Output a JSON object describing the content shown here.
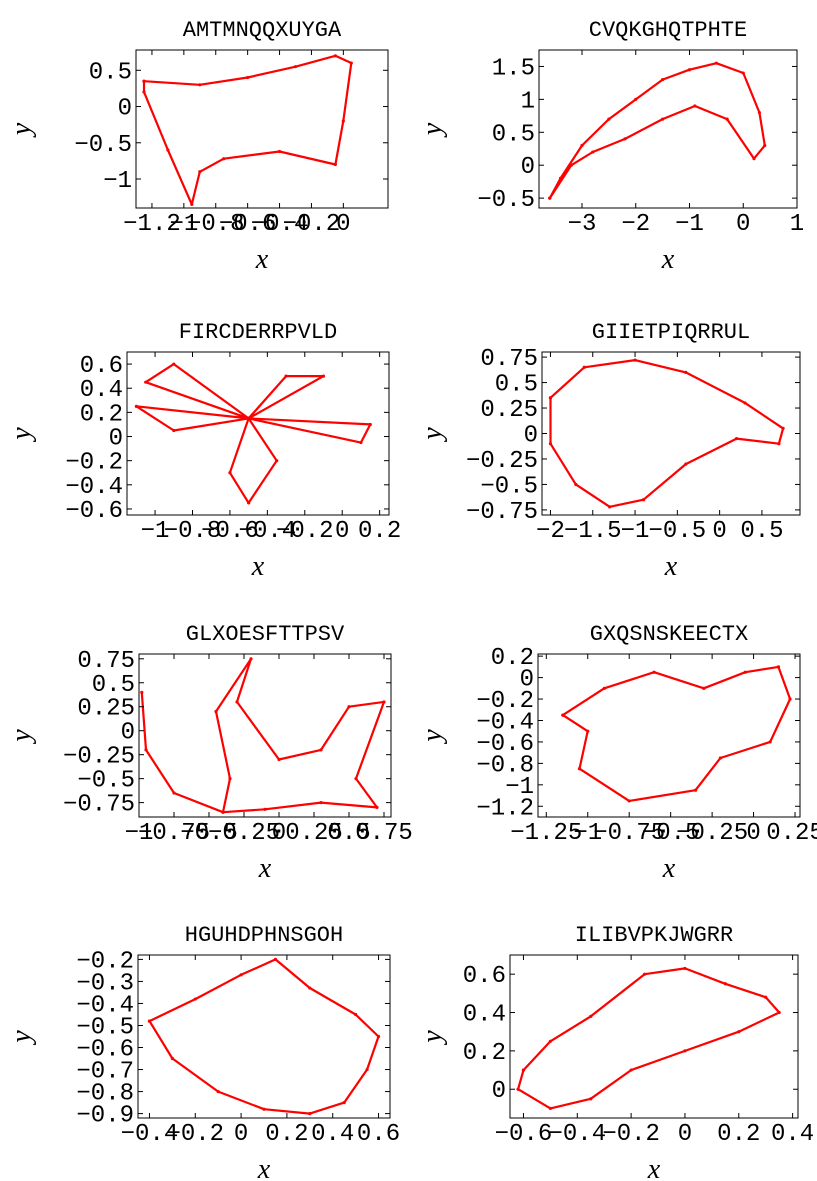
{
  "colors": {
    "points": "#ff0000",
    "frame": "#000000",
    "background": "#ffffff"
  },
  "chart_data": [
    {
      "type": "scatter",
      "title": "AMTMNQQXUYGA",
      "xlabel": "x",
      "ylabel": "y",
      "xlim": [
        -1.3,
        0.28
      ],
      "ylim": [
        -1.4,
        0.78
      ],
      "xticks": [
        -1.2,
        -1,
        -0.8,
        -0.6,
        -0.4,
        -0.2,
        0
      ],
      "xtick_labels": [
        "−1.2",
        "−1",
        "−0.8",
        "−0.6",
        "−0.4",
        "−0.2",
        "0"
      ],
      "yticks": [
        0.5,
        0,
        -0.5,
        -1
      ],
      "ytick_labels": [
        "0.5",
        "0",
        "−0.5",
        "−1"
      ],
      "series": [
        {
          "points": [
            [
              -1.25,
              0.35
            ],
            [
              -0.9,
              0.3
            ],
            [
              -0.6,
              0.4
            ],
            [
              -0.3,
              0.55
            ],
            [
              -0.05,
              0.7
            ],
            [
              0.05,
              0.6
            ],
            [
              0.0,
              -0.2
            ],
            [
              -0.05,
              -0.8
            ],
            [
              -0.4,
              -0.62
            ],
            [
              -0.75,
              -0.72
            ],
            [
              -0.9,
              -0.9
            ],
            [
              -0.95,
              -1.35
            ],
            [
              -1.1,
              -0.6
            ],
            [
              -1.25,
              0.2
            ],
            [
              -1.25,
              0.35
            ]
          ]
        }
      ]
    },
    {
      "type": "scatter",
      "title": "CVQKGHQTPHTE",
      "xlabel": "x",
      "ylabel": "y",
      "xlim": [
        -3.8,
        1.0
      ],
      "ylim": [
        -0.65,
        1.75
      ],
      "xticks": [
        -3,
        -2,
        -1,
        0,
        1
      ],
      "xtick_labels": [
        "−3",
        "−2",
        "−1",
        "0",
        "1"
      ],
      "yticks": [
        1.5,
        1,
        0.5,
        0,
        -0.5
      ],
      "ytick_labels": [
        "1.5",
        "1",
        "0.5",
        "0",
        "−0.5"
      ],
      "series": [
        {
          "points": [
            [
              -3.6,
              -0.5
            ],
            [
              -3.4,
              -0.2
            ],
            [
              -3.0,
              0.3
            ],
            [
              -2.5,
              0.7
            ],
            [
              -2.0,
              1.0
            ],
            [
              -1.5,
              1.3
            ],
            [
              -1.0,
              1.45
            ],
            [
              -0.5,
              1.55
            ],
            [
              0.0,
              1.4
            ],
            [
              0.3,
              0.8
            ],
            [
              0.4,
              0.3
            ],
            [
              0.2,
              0.1
            ],
            [
              -0.3,
              0.7
            ],
            [
              -0.9,
              0.9
            ],
            [
              -1.5,
              0.7
            ],
            [
              -2.2,
              0.4
            ],
            [
              -2.8,
              0.2
            ],
            [
              -3.2,
              0.0
            ],
            [
              -3.6,
              -0.5
            ]
          ]
        }
      ]
    },
    {
      "type": "scatter",
      "title": "FIRCDERRPVLD",
      "xlabel": "x",
      "ylabel": "y",
      "xlim": [
        -1.15,
        0.25
      ],
      "ylim": [
        -0.65,
        0.7
      ],
      "xticks": [
        -1,
        -0.8,
        -0.6,
        -0.4,
        -0.2,
        0,
        0.2
      ],
      "xtick_labels": [
        "−1",
        "−0.8",
        "−0.6",
        "−0.4",
        "−0.2",
        "0",
        "0.2"
      ],
      "yticks": [
        0.6,
        0.4,
        0.2,
        0,
        -0.2,
        -0.4,
        -0.6
      ],
      "ytick_labels": [
        "0.6",
        "0.4",
        "0.2",
        "0",
        "−0.2",
        "−0.4",
        "−0.6"
      ],
      "series": [
        {
          "points": [
            [
              -0.5,
              0.15
            ],
            [
              -0.9,
              0.6
            ],
            [
              -1.05,
              0.45
            ],
            [
              -0.5,
              0.15
            ],
            [
              -1.1,
              0.25
            ],
            [
              -0.9,
              0.05
            ],
            [
              -0.5,
              0.15
            ],
            [
              -0.6,
              -0.3
            ],
            [
              -0.5,
              -0.55
            ],
            [
              -0.35,
              -0.2
            ],
            [
              -0.5,
              0.15
            ],
            [
              0.1,
              -0.05
            ],
            [
              0.15,
              0.1
            ],
            [
              -0.5,
              0.15
            ],
            [
              -0.3,
              0.5
            ],
            [
              -0.1,
              0.5
            ],
            [
              -0.5,
              0.15
            ]
          ]
        }
      ]
    },
    {
      "type": "scatter",
      "title": "GIIETPIQRRUL",
      "xlabel": "x",
      "ylabel": "y",
      "xlim": [
        -2.1,
        0.95
      ],
      "ylim": [
        -0.8,
        0.8
      ],
      "xticks": [
        -2,
        -1.5,
        -1,
        -0.5,
        0,
        0.5
      ],
      "xtick_labels": [
        "−2",
        "−1.5",
        "−1",
        "−0.5",
        "0",
        "0.5"
      ],
      "yticks": [
        0.75,
        0.5,
        0.25,
        0,
        -0.25,
        -0.5,
        -0.75
      ],
      "ytick_labels": [
        "0.75",
        "0.5",
        "0.25",
        "0",
        "−0.25",
        "−0.5",
        "−0.75"
      ],
      "series": [
        {
          "points": [
            [
              -2.0,
              0.35
            ],
            [
              -1.6,
              0.65
            ],
            [
              -1.0,
              0.72
            ],
            [
              -0.4,
              0.6
            ],
            [
              0.3,
              0.3
            ],
            [
              0.75,
              0.05
            ],
            [
              0.7,
              -0.1
            ],
            [
              0.2,
              -0.05
            ],
            [
              -0.4,
              -0.3
            ],
            [
              -0.9,
              -0.65
            ],
            [
              -1.3,
              -0.72
            ],
            [
              -1.7,
              -0.5
            ],
            [
              -2.0,
              -0.1
            ],
            [
              -2.0,
              0.35
            ]
          ]
        }
      ]
    },
    {
      "type": "scatter",
      "title": "GLXOESFTTPSV",
      "xlabel": "x",
      "ylabel": "y",
      "xlim": [
        -1.0,
        0.8
      ],
      "ylim": [
        -0.9,
        0.8
      ],
      "xticks": [
        -1,
        -0.75,
        -0.5,
        -0.25,
        0,
        0.25,
        0.5,
        0.75
      ],
      "xtick_labels": [
        "−1",
        "−0.75",
        "−0.5",
        "−0.25",
        "0",
        "0.25",
        "0.5",
        "0.75"
      ],
      "yticks": [
        0.75,
        0.5,
        0.25,
        0,
        -0.25,
        -0.5,
        -0.75
      ],
      "ytick_labels": [
        "0.75",
        "0.5",
        "0.25",
        "0",
        "−0.25",
        "−0.5",
        "−0.75"
      ],
      "series": [
        {
          "points": [
            [
              -0.98,
              0.4
            ],
            [
              -0.95,
              -0.2
            ],
            [
              -0.75,
              -0.65
            ],
            [
              -0.4,
              -0.85
            ],
            [
              -0.1,
              -0.82
            ],
            [
              0.3,
              -0.75
            ],
            [
              0.7,
              -0.8
            ],
            [
              0.55,
              -0.5
            ],
            [
              0.75,
              0.3
            ],
            [
              0.5,
              0.25
            ],
            [
              0.3,
              -0.2
            ],
            [
              0.0,
              -0.3
            ],
            [
              -0.3,
              0.3
            ],
            [
              -0.2,
              0.75
            ],
            [
              -0.45,
              0.2
            ],
            [
              -0.35,
              -0.5
            ],
            [
              -0.4,
              -0.85
            ]
          ]
        }
      ]
    },
    {
      "type": "scatter",
      "title": "GXQSNSKEECTX",
      "xlabel": "x",
      "ylabel": "y",
      "xlim": [
        -1.3,
        0.28
      ],
      "ylim": [
        -1.3,
        0.22
      ],
      "xticks": [
        -1.25,
        -1,
        -0.75,
        -0.5,
        -0.25,
        0,
        0.25
      ],
      "xtick_labels": [
        "−1.25",
        "−1",
        "−0.75",
        "−0.5",
        "−0.25",
        "0",
        "0.25"
      ],
      "yticks": [
        0.2,
        0,
        -0.2,
        -0.4,
        -0.6,
        -0.8,
        -1,
        -1.2
      ],
      "ytick_labels": [
        "0.2",
        "0",
        "−0.2",
        "−0.4",
        "−0.6",
        "−0.8",
        "−1",
        "−1.2"
      ],
      "series": [
        {
          "points": [
            [
              -1.15,
              -0.35
            ],
            [
              -0.9,
              -0.1
            ],
            [
              -0.6,
              0.05
            ],
            [
              -0.3,
              -0.1
            ],
            [
              -0.05,
              0.05
            ],
            [
              0.15,
              0.1
            ],
            [
              0.22,
              -0.2
            ],
            [
              0.1,
              -0.6
            ],
            [
              -0.2,
              -0.75
            ],
            [
              -0.35,
              -1.05
            ],
            [
              -0.75,
              -1.15
            ],
            [
              -1.05,
              -0.85
            ],
            [
              -1.0,
              -0.5
            ],
            [
              -1.15,
              -0.35
            ]
          ]
        }
      ]
    },
    {
      "type": "scatter",
      "title": "HGUHDPHNSGOH",
      "xlabel": "x",
      "ylabel": "y",
      "xlim": [
        -0.45,
        0.65
      ],
      "ylim": [
        -0.92,
        -0.18
      ],
      "xticks": [
        -0.4,
        -0.2,
        0,
        0.2,
        0.4,
        0.6
      ],
      "xtick_labels": [
        "−0.4",
        "−0.2",
        "0",
        "0.2",
        "0.4",
        "0.6"
      ],
      "yticks": [
        -0.2,
        -0.3,
        -0.4,
        -0.5,
        -0.6,
        -0.7,
        -0.8,
        -0.9
      ],
      "ytick_labels": [
        "−0.2",
        "−0.3",
        "−0.4",
        "−0.5",
        "−0.6",
        "−0.7",
        "−0.8",
        "−0.9"
      ],
      "series": [
        {
          "points": [
            [
              -0.4,
              -0.48
            ],
            [
              -0.2,
              -0.38
            ],
            [
              0.0,
              -0.27
            ],
            [
              0.15,
              -0.2
            ],
            [
              0.3,
              -0.33
            ],
            [
              0.5,
              -0.45
            ],
            [
              0.6,
              -0.55
            ],
            [
              0.55,
              -0.7
            ],
            [
              0.45,
              -0.85
            ],
            [
              0.3,
              -0.9
            ],
            [
              0.1,
              -0.88
            ],
            [
              -0.1,
              -0.8
            ],
            [
              -0.3,
              -0.65
            ],
            [
              -0.4,
              -0.48
            ]
          ]
        }
      ]
    },
    {
      "type": "scatter",
      "title": "ILIBVPKJWGRR",
      "xlabel": "x",
      "ylabel": "y",
      "xlim": [
        -0.65,
        0.42
      ],
      "ylim": [
        -0.15,
        0.7
      ],
      "xticks": [
        -0.6,
        -0.4,
        -0.2,
        0,
        0.2,
        0.4
      ],
      "xtick_labels": [
        "−0.6",
        "−0.4",
        "−0.2",
        "0",
        "0.2",
        "0.4"
      ],
      "yticks": [
        0.6,
        0.4,
        0.2,
        0
      ],
      "ytick_labels": [
        "0.6",
        "0.4",
        "0.2",
        "0"
      ],
      "series": [
        {
          "points": [
            [
              -0.6,
              0.1
            ],
            [
              -0.5,
              0.25
            ],
            [
              -0.35,
              0.38
            ],
            [
              -0.15,
              0.6
            ],
            [
              0.0,
              0.63
            ],
            [
              0.15,
              0.55
            ],
            [
              0.3,
              0.48
            ],
            [
              0.35,
              0.4
            ],
            [
              0.2,
              0.3
            ],
            [
              0.0,
              0.2
            ],
            [
              -0.2,
              0.1
            ],
            [
              -0.35,
              -0.05
            ],
            [
              -0.5,
              -0.1
            ],
            [
              -0.62,
              0.0
            ],
            [
              -0.6,
              0.1
            ]
          ]
        }
      ]
    }
  ]
}
